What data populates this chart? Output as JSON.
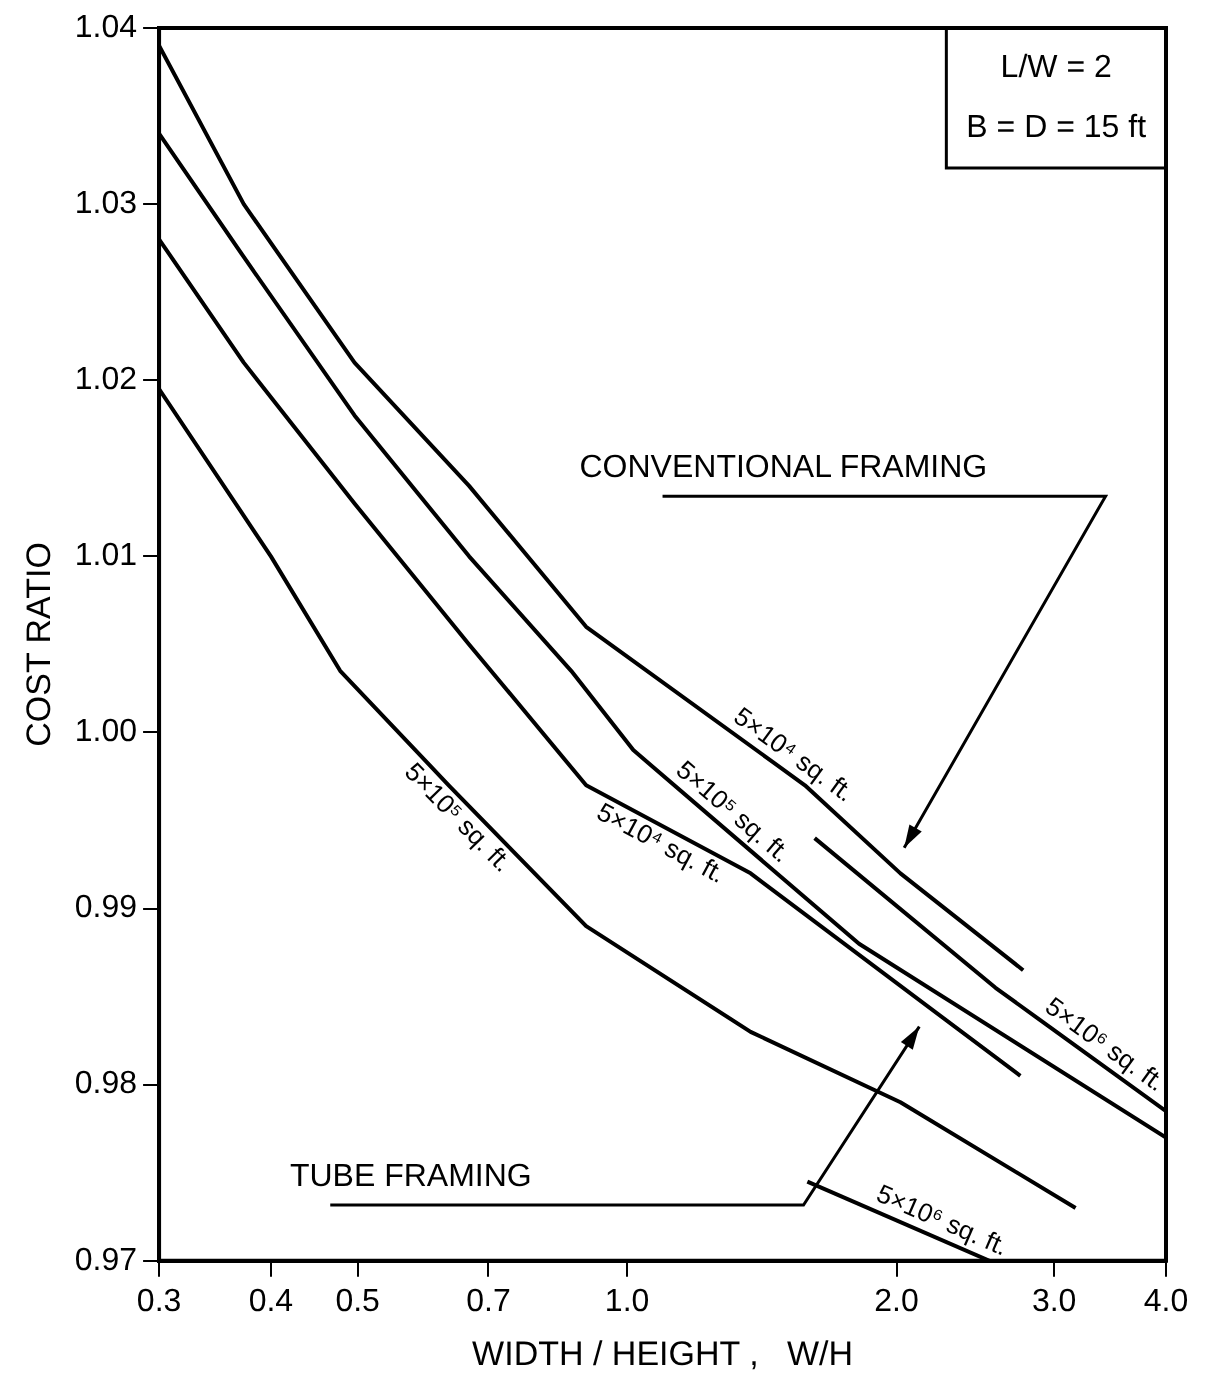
{
  "chart_data": {
    "type": "line",
    "xlabel": "WIDTH / HEIGHT ,   W/H",
    "ylabel": "COST RATIO",
    "log": "x",
    "xlim": [
      0.3,
      4.0
    ],
    "xticks": [
      0.3,
      0.4,
      0.5,
      0.7,
      {
        "value": 1,
        "label": "1.0"
      },
      {
        "value": 2,
        "label": "2.0"
      },
      {
        "value": 3,
        "label": "3.0"
      },
      {
        "value": 4,
        "label": "4.0"
      }
    ],
    "ylim": [
      0.97,
      1.04
    ],
    "yticks": [
      0.97,
      0.98,
      0.99,
      {
        "value": 1,
        "label": "1.00"
      },
      1.01,
      1.02,
      1.03,
      1.04
    ],
    "grid": false,
    "legend": false,
    "marker": "none",
    "line_style": "solid",
    "series": [
      {
        "name": "5×10⁴ sq. ft.",
        "color": "#000000",
        "x": [
          0.3,
          0.373,
          0.496,
          0.666,
          0.9,
          1.58,
          2.02,
          2.77
        ],
        "values": [
          1.039,
          1.03,
          1.021,
          1.014,
          1.006,
          0.997,
          0.992,
          0.9865
        ]
      },
      {
        "name": "5×10⁵ sq. ft.",
        "color": "#000000",
        "x": [
          0.3,
          0.373,
          0.496,
          0.666,
          0.866,
          1.016,
          1.816,
          4.0
        ],
        "values": [
          1.034,
          1.027,
          1.018,
          1.01,
          1.0035,
          0.999,
          0.988,
          0.977
        ]
      },
      {
        "name": "5×10⁶ sq. ft.",
        "color": "#000000",
        "x": [
          1.62,
          2.58,
          4.0
        ],
        "values": [
          0.994,
          0.9855,
          0.9785
        ]
      },
      {
        "name": "5×10⁴ sq. ft.",
        "color": "#000000",
        "x": [
          0.3,
          0.373,
          0.496,
          0.666,
          0.9,
          1.374,
          2.75
        ],
        "values": [
          1.028,
          1.021,
          1.013,
          1.005,
          0.997,
          0.992,
          0.9805
        ]
      },
      {
        "name": "5×10⁵ sq. ft.",
        "color": "#000000",
        "x": [
          0.3,
          0.4,
          0.478,
          0.632,
          0.9,
          1.374,
          2.02,
          3.17
        ],
        "values": [
          1.0195,
          1.01,
          1.0035,
          0.997,
          0.989,
          0.983,
          0.979,
          0.973
        ]
      },
      {
        "name": "5×10⁶ sq. ft.",
        "color": "#000000",
        "x": [
          1.59,
          2.54
        ],
        "values": [
          0.9745,
          0.97
        ]
      }
    ],
    "annotations": [
      "CONVENTIONAL FRAMING",
      "TUBE FRAMING",
      "L/W = 2",
      "B = D = 15 ft"
    ]
  }
}
